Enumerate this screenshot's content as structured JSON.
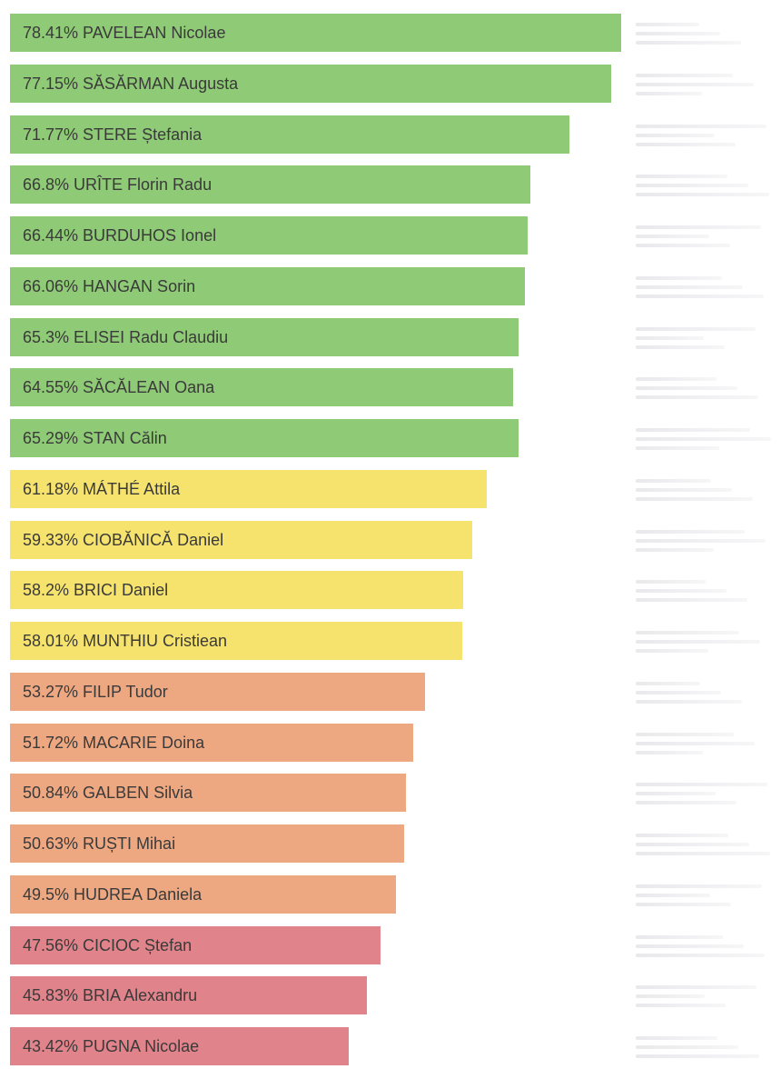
{
  "chart_data": {
    "type": "bar",
    "orientation": "horizontal",
    "title": "",
    "xlabel": "",
    "ylabel": "",
    "xlim": [
      0,
      100
    ],
    "grid": false,
    "legend": "none",
    "bars": [
      {
        "label": "78.41% PAVELEAN Nicolae",
        "value": 78.41,
        "color": "#8fca76"
      },
      {
        "label": "77.15% SĂSĂRMAN Augusta",
        "value": 77.15,
        "color": "#8fca76"
      },
      {
        "label": "71.77% STERE Ștefania",
        "value": 71.77,
        "color": "#8fca76"
      },
      {
        "label": "66.8% URÎTE Florin Radu",
        "value": 66.8,
        "color": "#8fca76"
      },
      {
        "label": "66.44% BURDUHOS Ionel",
        "value": 66.44,
        "color": "#8fca76"
      },
      {
        "label": "66.06% HANGAN Sorin",
        "value": 66.06,
        "color": "#8fca76"
      },
      {
        "label": "65.3% ELISEI Radu Claudiu",
        "value": 65.3,
        "color": "#8fca76"
      },
      {
        "label": "64.55% SĂCĂLEAN Oana",
        "value": 64.55,
        "color": "#8fca76"
      },
      {
        "label": "65.29% STAN Călin",
        "value": 65.29,
        "color": "#8fca76"
      },
      {
        "label": "61.18% MÁTHÉ Attila",
        "value": 61.18,
        "color": "#f6e36e"
      },
      {
        "label": "59.33% CIOBĂNICĂ Daniel",
        "value": 59.33,
        "color": "#f6e36e"
      },
      {
        "label": "58.2% BRICI Daniel",
        "value": 58.2,
        "color": "#f6e36e"
      },
      {
        "label": "58.01% MUNTHIU Cristiean",
        "value": 58.01,
        "color": "#f6e36e"
      },
      {
        "label": "53.27% FILIP Tudor",
        "value": 53.27,
        "color": "#eda882"
      },
      {
        "label": "51.72% MACARIE Doina",
        "value": 51.72,
        "color": "#eda882"
      },
      {
        "label": "50.84% GALBEN Silvia",
        "value": 50.84,
        "color": "#eda882"
      },
      {
        "label": "50.63% RUȘTI Mihai",
        "value": 50.63,
        "color": "#eda882"
      },
      {
        "label": "49.5% HUDREA Daniela",
        "value": 49.5,
        "color": "#eda882"
      },
      {
        "label": "47.56% CICIOC Ștefan",
        "value": 47.56,
        "color": "#e0838a"
      },
      {
        "label": "45.83% BRIA Alexandru",
        "value": 45.83,
        "color": "#e0838a"
      },
      {
        "label": "43.42% PUGNA Nicolae",
        "value": 43.42,
        "color": "#e0838a"
      }
    ]
  }
}
